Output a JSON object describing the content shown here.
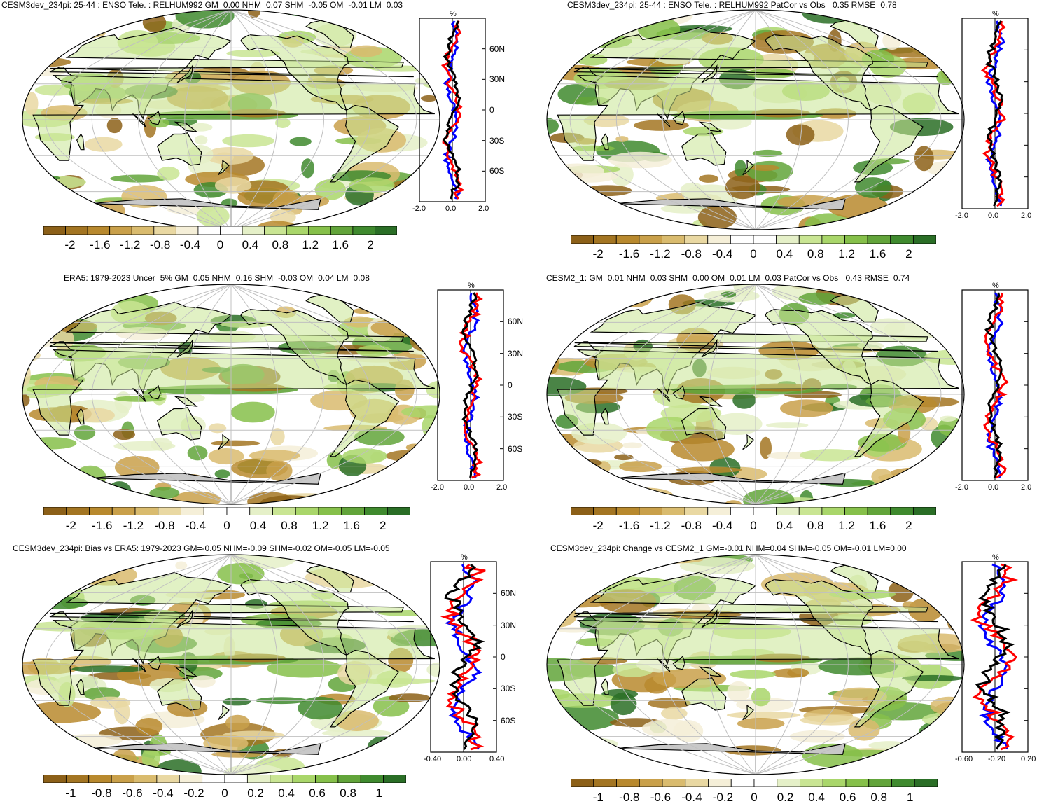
{
  "panels": [
    {
      "title": "CESM3dev_234pi: 25-44 : ENSO Tele. : RELHUM992 GM=0.00 NHM=0.07 SHM=-0.05 OM=-0.01 LM=0.03",
      "colorbar_labels": [
        "-2",
        "-1.6",
        "-1.2",
        "-0.8",
        "-0.4",
        "0",
        "0.4",
        "0.8",
        "1.2",
        "1.6",
        "2"
      ],
      "zonal_unit": "%",
      "zonal_ticks": [
        "-2.0",
        "0.0",
        "2.0"
      ],
      "lat_labels": [
        "60N",
        "30N",
        "0",
        "30S",
        "60S"
      ]
    },
    {
      "title": "CESM3dev_234pi: 25-44 : ENSO Tele. : RELHUM992 PatCor vs Obs =0.35 RMSE=0.78",
      "colorbar_labels": [
        "-2",
        "-1.6",
        "-1.2",
        "-0.8",
        "-0.4",
        "0",
        "0.4",
        "0.8",
        "1.2",
        "1.6",
        "2"
      ],
      "zonal_unit": "%",
      "zonal_ticks": [
        "-2.0",
        "0.0",
        "2.0"
      ],
      "lat_labels": []
    },
    {
      "title": "ERA5: 1979-2023 Uncer=5% GM=0.05 NHM=0.16 SHM=-0.03 OM=0.04 LM=0.08",
      "colorbar_labels": [
        "-2",
        "-1.6",
        "-1.2",
        "-0.8",
        "-0.4",
        "0",
        "0.4",
        "0.8",
        "1.2",
        "1.6",
        "2"
      ],
      "zonal_unit": "%",
      "zonal_ticks": [
        "-2.0",
        "0.0",
        "2.0"
      ],
      "lat_labels": [
        "60N",
        "30N",
        "0",
        "30S",
        "60S"
      ]
    },
    {
      "title": "CESM2_1: GM=0.01 NHM=0.03 SHM=0.00 OM=0.01 LM=0.03 PatCor vs Obs =0.43 RMSE=0.74",
      "colorbar_labels": [
        "-2",
        "-1.6",
        "-1.2",
        "-0.8",
        "-0.4",
        "0",
        "0.4",
        "0.8",
        "1.2",
        "1.6",
        "2"
      ],
      "zonal_unit": "%",
      "zonal_ticks": [
        "-2.0",
        "0.0",
        "2.0"
      ],
      "lat_labels": []
    },
    {
      "title": "CESM3dev_234pi: Bias vs ERA5: 1979-2023 GM=-0.05 NHM=-0.09 SHM=-0.02 OM=-0.05 LM=-0.05",
      "colorbar_labels": [
        "-1",
        "-0.8",
        "-0.6",
        "-0.4",
        "-0.2",
        "0",
        "0.2",
        "0.4",
        "0.6",
        "0.8",
        "1"
      ],
      "zonal_unit": "%",
      "zonal_ticks": [
        "-0.40",
        "0.00",
        "0.40"
      ],
      "lat_labels": [
        "60N",
        "30N",
        "0",
        "30S",
        "60S"
      ]
    },
    {
      "title": "CESM3dev_234pi: Change vs CESM2_1 GM=-0.01 NHM=0.04 SHM=-0.05 OM=-0.01 LM=0.00",
      "colorbar_labels": [
        "-1",
        "-0.8",
        "-0.6",
        "-0.4",
        "-0.2",
        "0",
        "0.2",
        "0.4",
        "0.6",
        "0.8",
        "1"
      ],
      "zonal_unit": "%",
      "zonal_ticks": [
        "-0.60",
        "-0.20",
        "0.20"
      ],
      "lat_labels": []
    }
  ],
  "colors": {
    "land_missing": "#c8c8c8",
    "coast": "#000000",
    "grid": "#c0c0c0",
    "palette": [
      "#8c6018",
      "#a37522",
      "#b8892e",
      "#c9a04a",
      "#d9bb6e",
      "#e9d8a2",
      "#f5efd8",
      "#ffffff",
      "#ffffff",
      "#e5f0c8",
      "#c9e593",
      "#a9d66a",
      "#86c04a",
      "#62a43a",
      "#3f8a2e",
      "#2a6e26"
    ],
    "zonal_lines": {
      "obs": "#ff0000",
      "model": "#0000ff",
      "other": "#000000"
    }
  }
}
